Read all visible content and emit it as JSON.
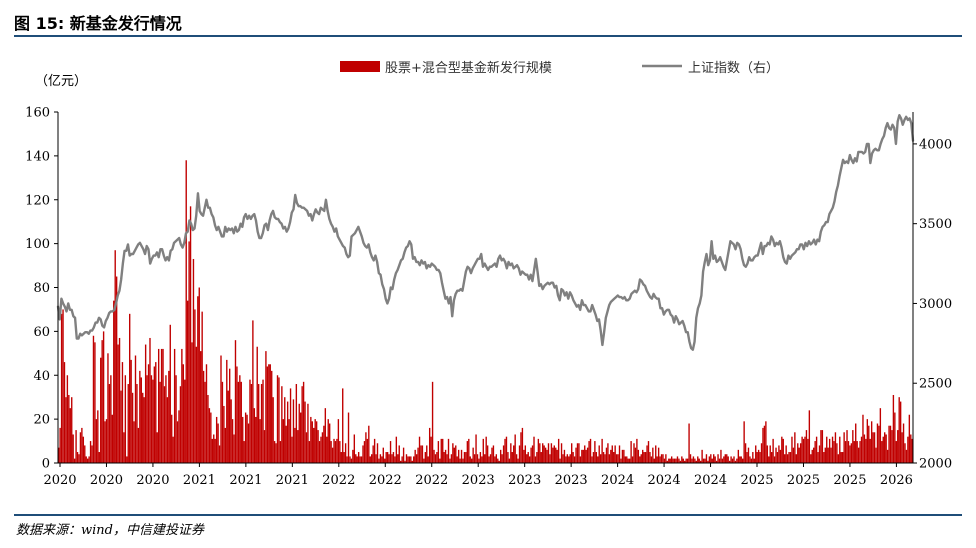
{
  "figure": {
    "title": "图 15: 新基金发行情况",
    "source": "数据来源：wind，中信建投证券"
  },
  "colors": {
    "bar": "#c00000",
    "line": "#808080",
    "rule": "#1f4e79"
  },
  "chart_data": {
    "type": "bar+line",
    "left_unit_label": "（亿元）",
    "legend_position": "top",
    "grid": false,
    "left_axis": {
      "min": 0,
      "max": 160,
      "ticks": [
        0,
        20,
        40,
        60,
        80,
        100,
        120,
        140,
        160
      ]
    },
    "right_axis": {
      "min": 2000,
      "max": 4200,
      "ticks": [
        2000,
        2500,
        3000,
        3500,
        4000
      ]
    },
    "x_tick_labels": [
      "2020",
      "2020",
      "2020",
      "2021",
      "2021",
      "2021",
      "2022",
      "2022",
      "2022",
      "2023",
      "2023",
      "2023",
      "2024",
      "2024",
      "2024",
      "2025",
      "2025",
      "2025",
      "2026"
    ],
    "series": [
      {
        "name": "股票+混合型基金新发行规模",
        "kind": "bar",
        "axis": "left",
        "values": [
          7,
          16,
          68,
          70,
          46,
          30,
          40,
          31,
          25,
          30,
          13,
          2,
          15,
          5,
          4,
          14,
          16,
          12,
          8,
          3,
          2,
          3,
          10,
          8,
          58,
          55,
          20,
          24,
          5,
          48,
          56,
          60,
          19,
          20,
          50,
          36,
          40,
          22,
          74,
          97,
          85,
          54,
          57,
          33,
          46,
          14,
          40,
          3,
          36,
          68,
          47,
          32,
          19,
          49,
          36,
          16,
          42,
          39,
          32,
          30,
          54,
          40,
          45,
          57,
          40,
          38,
          44,
          46,
          14,
          52,
          37,
          52,
          52,
          35,
          40,
          30,
          42,
          63,
          22,
          12,
          52,
          40,
          19,
          24,
          35,
          52,
          45,
          38,
          138,
          74,
          101,
          117,
          55,
          93,
          70,
          53,
          76,
          80,
          51,
          69,
          42,
          37,
          45,
          31,
          25,
          23,
          11,
          13,
          11,
          21,
          18,
          8,
          49,
          37,
          26,
          16,
          47,
          33,
          43,
          29,
          20,
          13,
          56,
          44,
          37,
          40,
          37,
          21,
          10,
          23,
          22,
          18,
          38,
          36,
          65,
          25,
          21,
          53,
          36,
          20,
          36,
          38,
          15,
          51,
          44,
          45,
          45,
          42,
          30,
          10,
          9,
          40,
          39,
          10,
          35,
          20,
          30,
          17,
          28,
          20,
          34,
          12,
          29,
          16,
          36,
          15,
          27,
          23,
          35,
          37,
          28,
          14,
          27,
          10,
          21,
          19,
          16,
          20,
          19,
          15,
          10,
          12,
          14,
          17,
          25,
          12,
          20,
          18,
          10,
          7,
          11,
          10,
          11,
          20,
          10,
          5,
          34,
          5,
          9,
          3,
          23,
          3,
          2,
          6,
          13,
          4,
          3,
          5,
          3,
          3,
          8,
          10,
          14,
          11,
          17,
          3,
          4,
          8,
          11,
          4,
          9,
          2,
          4,
          3,
          7,
          2,
          5,
          5,
          4,
          10,
          4,
          5,
          3,
          12,
          4,
          8,
          1,
          3,
          7,
          1,
          4,
          3,
          3,
          3,
          1,
          3,
          6,
          4,
          7,
          12,
          8,
          8,
          2,
          5,
          8,
          3,
          16,
          12,
          37,
          6,
          4,
          5,
          10,
          2,
          11,
          11,
          5,
          6,
          4,
          11,
          2,
          4,
          9,
          7,
          8,
          3,
          6,
          2,
          6,
          2,
          5,
          5,
          10,
          11,
          3,
          2,
          7,
          4,
          13,
          4,
          2,
          5,
          3,
          11,
          4,
          12,
          8,
          3,
          4,
          7,
          8,
          3,
          4,
          2,
          1,
          6,
          4,
          8,
          11,
          12,
          5,
          2,
          9,
          5,
          8,
          13,
          4,
          2,
          8,
          14,
          16,
          6,
          8,
          4,
          5,
          3,
          7,
          8,
          12,
          3,
          5,
          11,
          9,
          5,
          9,
          8,
          7,
          6,
          9,
          4,
          9,
          7,
          8,
          7,
          6,
          11,
          2,
          9,
          4,
          6,
          3,
          4,
          3,
          4,
          9,
          5,
          3,
          7,
          9,
          9,
          3,
          6,
          6,
          8,
          6,
          7,
          10,
          11,
          3,
          5,
          10,
          5,
          3,
          8,
          4,
          11,
          5,
          4,
          7,
          9,
          4,
          6,
          8,
          5,
          8,
          4,
          4,
          8,
          2,
          6,
          6,
          3,
          3,
          2,
          2,
          10,
          3,
          9,
          7,
          11,
          6,
          3,
          4,
          6,
          5,
          5,
          8,
          10,
          5,
          3,
          7,
          2,
          8,
          3,
          7,
          3,
          4,
          4,
          2,
          4,
          1,
          2,
          2,
          3,
          2,
          2,
          2,
          3,
          2,
          1,
          3,
          2,
          1,
          2,
          2,
          18,
          4,
          2,
          3,
          2,
          1,
          3,
          2,
          1,
          6,
          2,
          2,
          4,
          1,
          3,
          4,
          2,
          4,
          3,
          1,
          4,
          2,
          6,
          2,
          3,
          4,
          4,
          3,
          1,
          3,
          2,
          3,
          1,
          2,
          6,
          3,
          3,
          2,
          19,
          9,
          5,
          7,
          3,
          2,
          5,
          2,
          8,
          5,
          6,
          5,
          9,
          16,
          17,
          19,
          8,
          3,
          8,
          5,
          11,
          3,
          7,
          5,
          8,
          6,
          12,
          11,
          4,
          8,
          4,
          5,
          5,
          12,
          7,
          14,
          4,
          9,
          7,
          9,
          12,
          11,
          12,
          15,
          11,
          24,
          4,
          6,
          7,
          10,
          12,
          5,
          8,
          15,
          15,
          5,
          7,
          12,
          7,
          11,
          7,
          12,
          10,
          14,
          9,
          4,
          12,
          5,
          5,
          14,
          10,
          15,
          10,
          8,
          9,
          15,
          10,
          18,
          10,
          7,
          10,
          12,
          22,
          13,
          11,
          20,
          17,
          11,
          19,
          14,
          14,
          7,
          18,
          17,
          25,
          10,
          12,
          14,
          13,
          6,
          17,
          17,
          15,
          31,
          23,
          10,
          15,
          30,
          28,
          14,
          18,
          9,
          6,
          12,
          22,
          13,
          11
        ]
      },
      {
        "name": "上证指数（右）",
        "kind": "line",
        "axis": "right",
        "values": [
          2980,
          2900,
          3030,
          3000,
          2980,
          2950,
          3000,
          2960,
          2960,
          2920,
          2910,
          2780,
          2780,
          2810,
          2800,
          2810,
          2820,
          2820,
          2810,
          2830,
          2830,
          2850,
          2880,
          2880,
          2910,
          2900,
          2860,
          2850,
          2890,
          2910,
          2940,
          2950,
          2950,
          2960,
          3000,
          3050,
          3080,
          3150,
          3250,
          3330,
          3330,
          3370,
          3300,
          3310,
          3310,
          3330,
          3350,
          3370,
          3380,
          3360,
          3340,
          3310,
          3360,
          3340,
          3250,
          3280,
          3300,
          3300,
          3320,
          3290,
          3340,
          3340,
          3300,
          3270,
          3290,
          3270,
          3330,
          3340,
          3380,
          3390,
          3400,
          3410,
          3370,
          3350,
          3380,
          3440,
          3450,
          3520,
          3500,
          3460,
          3470,
          3550,
          3690,
          3580,
          3560,
          3550,
          3600,
          3650,
          3600,
          3600,
          3560,
          3540,
          3490,
          3460,
          3480,
          3450,
          3420,
          3420,
          3480,
          3450,
          3470,
          3460,
          3470,
          3440,
          3480,
          3450,
          3460,
          3500,
          3480,
          3540,
          3560,
          3530,
          3550,
          3530,
          3550,
          3560,
          3520,
          3450,
          3410,
          3410,
          3440,
          3490,
          3500,
          3460,
          3520,
          3560,
          3580,
          3540,
          3530,
          3530,
          3510,
          3500,
          3470,
          3480,
          3450,
          3470,
          3510,
          3570,
          3590,
          3680,
          3630,
          3610,
          3610,
          3600,
          3600,
          3590,
          3580,
          3550,
          3560,
          3520,
          3560,
          3590,
          3570,
          3560,
          3600,
          3590,
          3580,
          3650,
          3580,
          3530,
          3500,
          3480,
          3450,
          3470,
          3420,
          3400,
          3380,
          3360,
          3350,
          3310,
          3290,
          3300,
          3420,
          3430,
          3440,
          3460,
          3480,
          3450,
          3420,
          3380,
          3360,
          3350,
          3370,
          3320,
          3290,
          3270,
          3300,
          3260,
          3190,
          3180,
          3120,
          3090,
          3030,
          3000,
          3030,
          3100,
          3090,
          3150,
          3190,
          3210,
          3240,
          3270,
          3280,
          3320,
          3350,
          3360,
          3390,
          3370,
          3280,
          3290,
          3260,
          3260,
          3240,
          3270,
          3250,
          3260,
          3220,
          3240,
          3230,
          3250,
          3240,
          3230,
          3210,
          3210,
          3190,
          3130,
          3080,
          3030,
          3040,
          3000,
          3040,
          2920,
          3020,
          3060,
          3080,
          3080,
          3090,
          3080,
          3140,
          3200,
          3230,
          3220,
          3190,
          3220,
          3240,
          3260,
          3280,
          3280,
          3310,
          3230,
          3250,
          3230,
          3210,
          3230,
          3230,
          3240,
          3250,
          3230,
          3280,
          3300,
          3270,
          3280,
          3260,
          3220,
          3260,
          3240,
          3250,
          3220,
          3230,
          3240,
          3220,
          3180,
          3200,
          3190,
          3180,
          3180,
          3150,
          3180,
          3140,
          3210,
          3280,
          3200,
          3110,
          3120,
          3090,
          3110,
          3120,
          3130,
          3120,
          3130,
          3130,
          3100,
          3110,
          3050,
          3020,
          3090,
          3080,
          3050,
          3070,
          3030,
          3070,
          3050,
          3020,
          3000,
          2980,
          2990,
          2960,
          3020,
          2990,
          2990,
          2970,
          2950,
          2950,
          2990,
          2960,
          2930,
          2890,
          2900,
          2830,
          2740,
          2820,
          2910,
          2950,
          2990,
          3010,
          3020,
          3030,
          3040,
          3050,
          3040,
          3040,
          3030,
          3040,
          3020,
          3020,
          3030,
          3060,
          3070,
          3080,
          3070,
          3090,
          3150,
          3140,
          3120,
          3110,
          3080,
          3060,
          3040,
          3030,
          3060,
          3040,
          3030,
          3030,
          2970,
          2970,
          2930,
          2950,
          2960,
          2960,
          2930,
          2920,
          2880,
          2920,
          2900,
          2870,
          2880,
          2890,
          2860,
          2820,
          2820,
          2760,
          2720,
          2710,
          2760,
          2910,
          2970,
          3000,
          3050,
          3200,
          3260,
          3310,
          3240,
          3270,
          3390,
          3280,
          3300,
          3260,
          3270,
          3290,
          3260,
          3230,
          3210,
          3270,
          3330,
          3390,
          3380,
          3370,
          3340,
          3380,
          3370,
          3340,
          3280,
          3240,
          3230,
          3250,
          3290,
          3270,
          3270,
          3290,
          3300,
          3300,
          3340,
          3380,
          3310,
          3360,
          3360,
          3380,
          3370,
          3420,
          3400,
          3360,
          3380,
          3370,
          3390,
          3350,
          3290,
          3260,
          3250,
          3300,
          3280,
          3300,
          3310,
          3320,
          3340,
          3340,
          3370,
          3370,
          3340,
          3380,
          3360,
          3390,
          3370,
          3380,
          3400,
          3370,
          3400,
          3390,
          3450,
          3480,
          3490,
          3510,
          3510,
          3560,
          3580,
          3600,
          3640,
          3700,
          3740,
          3800,
          3850,
          3900,
          3880,
          3890,
          3880,
          3930,
          3900,
          3880,
          3910,
          3890,
          3950,
          3950,
          3950,
          3940,
          3950,
          4000,
          4000,
          3880,
          3940,
          3960,
          3970,
          3960,
          3960,
          4000,
          4030,
          4050,
          4100,
          4130,
          4100,
          4090,
          4120,
          4100,
          4000,
          4140,
          4180,
          4160,
          4120,
          4150,
          4170,
          4150,
          4160,
          4130,
          4020
        ]
      }
    ]
  }
}
